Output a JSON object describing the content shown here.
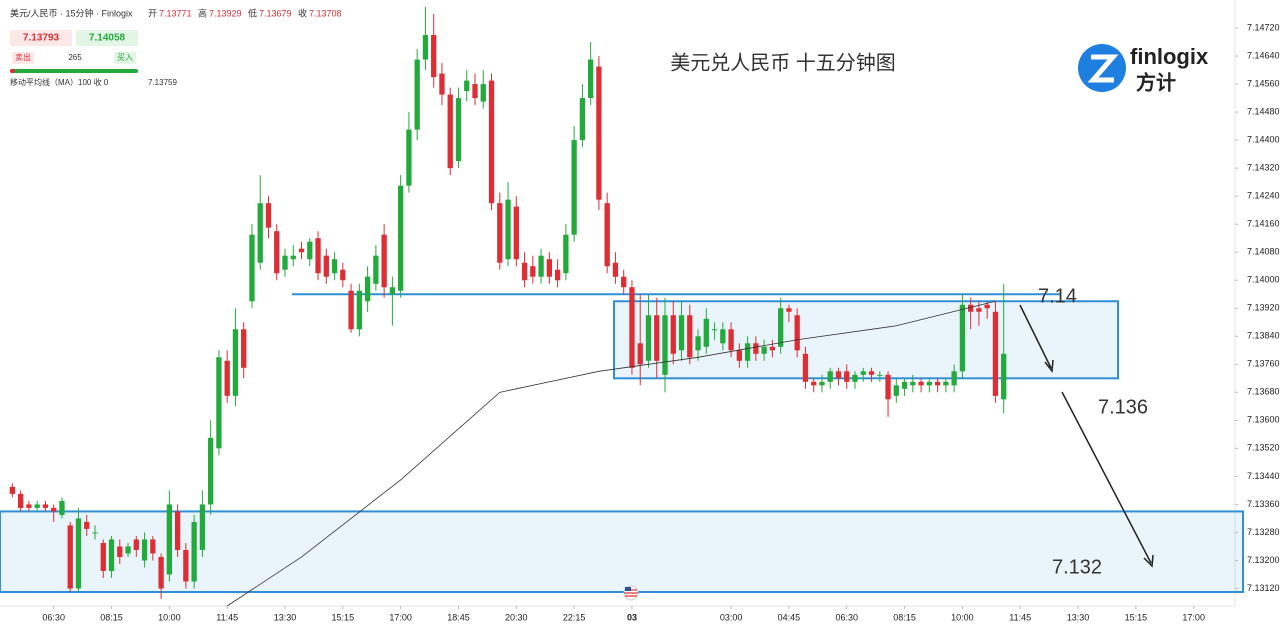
{
  "header": {
    "symbol": "美元/人民币 · 15分钟 · Finlogix",
    "ohlc": [
      [
        "开",
        "7.13771"
      ],
      [
        "高",
        "7.13929"
      ],
      [
        "低",
        "7.13679"
      ],
      [
        "收",
        "7.13708"
      ]
    ],
    "sell_price": "7.13793",
    "buy_price": "7.14058",
    "sell": "卖出",
    "spread": "265",
    "buy": "买入",
    "indicator": "移动平均线（MA）100 收 0",
    "indicator_value": "7.13759",
    "logo_text": "finlogix",
    "logo_cn": "方计"
  },
  "chart_data": {
    "type": "candlestick",
    "title": "美元兑人民币 十五分钟图",
    "up_color": "#22ab3c",
    "down_color": "#dd2d35",
    "open": [
      7.1341,
      7.1339,
      7.1336,
      7.1335,
      7.1336,
      7.1335,
      7.1333,
      7.133,
      7.1312,
      7.1331,
      7.1328,
      7.1325,
      7.1317,
      7.1324,
      7.1322,
      7.1326,
      7.132,
      7.1326,
      7.1321,
      7.1316,
      7.1334,
      7.1323,
      7.1314,
      7.1323,
      7.1336,
      7.1352,
      7.1377,
      7.1367,
      7.1386,
      7.1394,
      7.1405,
      7.1422,
      7.1414,
      7.1403,
      7.1406,
      7.1409,
      7.1406,
      7.1412,
      7.1407,
      7.1402,
      7.1403,
      7.1397,
      7.1386,
      7.1394,
      7.1399,
      7.1413,
      7.1396,
      7.1397,
      7.1427,
      7.1443,
      7.1463,
      7.147,
      7.1459,
      7.1453,
      7.1434,
      7.1454,
      7.1456,
      7.1451,
      7.1457,
      7.1422,
      7.1406,
      7.1421,
      7.1405,
      7.1404,
      7.1401,
      7.1406,
      7.1403,
      7.1402,
      7.1413,
      7.144,
      7.1452,
      7.1461,
      7.1422,
      7.1405,
      7.1401,
      7.1398,
      7.1382,
      7.1377,
      7.139,
      7.1373,
      7.139,
      7.138,
      7.139,
      7.138,
      7.1381,
      7.1386,
      7.1382,
      7.1386,
      7.138,
      7.1377,
      7.1382,
      7.1379,
      7.1381,
      7.1381,
      7.1392,
      7.139,
      7.1379,
      7.1371,
      7.137,
      7.1371,
      7.1374,
      7.1374,
      7.1371,
      7.1373,
      7.1374,
      7.1373,
      7.1373,
      7.1367,
      7.1369,
      7.137,
      7.1371,
      7.137,
      7.1371,
      7.137,
      7.137,
      7.1374,
      7.1393,
      7.1392,
      7.1393,
      7.1391,
      7.1366
    ],
    "high": [
      7.1342,
      7.134,
      7.1337,
      7.1337,
      7.1337,
      7.1336,
      7.1338,
      7.1331,
      7.1335,
      7.1333,
      7.133,
      7.1326,
      7.1327,
      7.1326,
      7.1325,
      7.1327,
      7.1328,
      7.1327,
      7.1322,
      7.134,
      7.1336,
      7.1325,
      7.1333,
      7.134,
      7.136,
      7.138,
      7.138,
      7.1392,
      7.1388,
      7.1416,
      7.143,
      7.1424,
      7.1416,
      7.1409,
      7.141,
      7.1411,
      7.1412,
      7.1414,
      7.1409,
      7.1408,
      7.1405,
      7.1399,
      7.1399,
      7.1404,
      7.141,
      7.1416,
      7.1401,
      7.143,
      7.1448,
      7.1466,
      7.1478,
      7.1476,
      7.1462,
      7.1455,
      7.1455,
      7.146,
      7.1459,
      7.146,
      7.1459,
      7.1425,
      7.1428,
      7.1424,
      7.1408,
      7.1407,
      7.1409,
      7.1408,
      7.1406,
      7.1416,
      7.1444,
      7.1456,
      7.1468,
      7.1464,
      7.1425,
      7.1408,
      7.1403,
      7.14,
      7.1396,
      7.1396,
      7.1395,
      7.1395,
      7.1394,
      7.1394,
      7.1393,
      7.1386,
      7.1392,
      7.1388,
      7.1388,
      7.1388,
      7.1382,
      7.1384,
      7.1384,
      7.1383,
      7.1383,
      7.1395,
      7.1393,
      7.1392,
      7.1381,
      7.1372,
      7.1373,
      7.1375,
      7.1375,
      7.1376,
      7.1374,
      7.1375,
      7.1375,
      7.1374,
      7.1374,
      7.1372,
      7.1372,
      7.1373,
      7.1372,
      7.1372,
      7.1372,
      7.1372,
      7.1376,
      7.1396,
      7.1395,
      7.1394,
      7.1394,
      7.1394,
      7.1399
    ],
    "low": [
      7.1338,
      7.1334,
      7.1334,
      7.1334,
      7.1334,
      7.1331,
      7.1332,
      7.1311,
      7.1311,
      7.1327,
      7.1326,
      7.1315,
      7.1315,
      7.1319,
      7.1321,
      7.1321,
      7.1318,
      7.132,
      7.1309,
      7.1314,
      7.1321,
      7.1312,
      7.1312,
      7.1321,
      7.1333,
      7.135,
      7.1365,
      7.1364,
      7.1372,
      7.1392,
      7.1403,
      7.1412,
      7.14,
      7.1401,
      7.1404,
      7.1406,
      7.1404,
      7.14,
      7.1399,
      7.14,
      7.1398,
      7.1385,
      7.1384,
      7.1391,
      7.1397,
      7.1395,
      7.1387,
      7.1395,
      7.1425,
      7.144,
      7.146,
      7.1455,
      7.145,
      7.143,
      7.1432,
      7.1451,
      7.145,
      7.1449,
      7.142,
      7.1403,
      7.1404,
      7.1404,
      7.1398,
      7.1399,
      7.1399,
      7.1399,
      7.1398,
      7.14,
      7.1411,
      7.1438,
      7.145,
      7.142,
      7.1402,
      7.1399,
      7.1396,
      7.1373,
      7.137,
      7.1375,
      7.1372,
      7.1368,
      7.1376,
      7.1377,
      7.1376,
      7.1377,
      7.1379,
      7.1383,
      7.138,
      7.1378,
      7.1375,
      7.1375,
      7.1377,
      7.1377,
      7.1378,
      7.1379,
      7.1388,
      7.1378,
      7.1369,
      7.1368,
      7.1368,
      7.1369,
      7.137,
      7.1369,
      7.1369,
      7.1371,
      7.1371,
      7.1371,
      7.1361,
      7.1365,
      7.1367,
      7.1368,
      7.1368,
      7.1368,
      7.1368,
      7.1368,
      7.1368,
      7.1372,
      7.1386,
      7.1387,
      7.1389,
      7.1365,
      7.1362
    ],
    "close": [
      7.1339,
      7.1335,
      7.1335,
      7.1336,
      7.1335,
      7.1334,
      7.1337,
      7.1312,
      7.1332,
      7.1329,
      7.1328,
      7.1317,
      7.1326,
      7.1321,
      7.1324,
      7.1323,
      7.1326,
      7.1322,
      7.1312,
      7.1336,
      7.1323,
      7.1314,
      7.1331,
      7.1336,
      7.1355,
      7.1378,
      7.1367,
      7.1386,
      7.1375,
      7.1413,
      7.1422,
      7.1415,
      7.1402,
      7.1407,
      7.1407,
      7.1408,
      7.1411,
      7.1402,
      7.1401,
      7.1406,
      7.14,
      7.1386,
      7.1397,
      7.1401,
      7.1407,
      7.1398,
      7.1398,
      7.1427,
      7.1443,
      7.1463,
      7.147,
      7.1458,
      7.1453,
      7.1432,
      7.1452,
      7.1457,
      7.1452,
      7.1456,
      7.1422,
      7.1405,
      7.1423,
      7.1406,
      7.14,
      7.1401,
      7.1407,
      7.1401,
      7.14,
      7.1413,
      7.144,
      7.1452,
      7.1463,
      7.1423,
      7.1404,
      7.1401,
      7.1398,
      7.1375,
      7.1376,
      7.139,
      7.1377,
      7.139,
      7.1379,
      7.139,
      7.1378,
      7.1384,
      7.1389,
      7.1386,
      7.1386,
      7.138,
      7.1377,
      7.1382,
      7.1379,
      7.1381,
      7.138,
      7.1392,
      7.1391,
      7.138,
      7.1371,
      7.137,
      7.1371,
      7.1374,
      7.1372,
      7.1371,
      7.1373,
      7.1374,
      7.1373,
      7.1373,
      7.1366,
      7.137,
      7.1371,
      7.1371,
      7.137,
      7.1371,
      7.137,
      7.1371,
      7.1374,
      7.1393,
      7.1391,
      7.1391,
      7.1392,
      7.1367,
      7.1379
    ],
    "ma": {
      "color": "#333333",
      "x": [
        26,
        35,
        47,
        59,
        71,
        83,
        95,
        107,
        119
      ],
      "values": [
        7.1307,
        7.1321,
        7.1343,
        7.1368,
        7.1374,
        7.1378,
        7.1383,
        7.1387,
        7.1394
      ]
    },
    "xlim": [
      -1.5,
      148
    ],
    "xticks": [
      {
        "value": 5,
        "label": "06:30"
      },
      {
        "value": 12,
        "label": "08:15"
      },
      {
        "value": 19,
        "label": "10:00"
      },
      {
        "value": 26,
        "label": "11:45"
      },
      {
        "value": 33,
        "label": "13:30"
      },
      {
        "value": 40,
        "label": "15:15"
      },
      {
        "value": 47,
        "label": "17:00"
      },
      {
        "value": 54,
        "label": "18:45"
      },
      {
        "value": 61,
        "label": "20:30"
      },
      {
        "value": 68,
        "label": "22:15"
      },
      {
        "value": 75,
        "label": "03"
      },
      {
        "value": 87,
        "label": "03:00"
      },
      {
        "value": 94,
        "label": "04:45"
      },
      {
        "value": 101,
        "label": "06:30"
      },
      {
        "value": 108,
        "label": "08:15"
      },
      {
        "value": 115,
        "label": "10:00"
      },
      {
        "value": 122,
        "label": "11:45"
      },
      {
        "value": 129,
        "label": "13:30"
      },
      {
        "value": 136,
        "label": "15:15"
      },
      {
        "value": 143,
        "label": "17:00"
      }
    ],
    "ylim": [
      7.1307,
      7.148
    ],
    "yticks": [
      {
        "value": 7.1472,
        "label": "7.14720"
      },
      {
        "value": 7.1464,
        "label": "7.14640"
      },
      {
        "value": 7.1456,
        "label": "7.14560"
      },
      {
        "value": 7.1448,
        "label": "7.14480"
      },
      {
        "value": 7.144,
        "label": "7.14400"
      },
      {
        "value": 7.1432,
        "label": "7.14320"
      },
      {
        "value": 7.1424,
        "label": "7.14240"
      },
      {
        "value": 7.1416,
        "label": "7.14160"
      },
      {
        "value": 7.1408,
        "label": "7.14080"
      },
      {
        "value": 7.14,
        "label": "7.14000"
      },
      {
        "value": 7.1392,
        "label": "7.13920"
      },
      {
        "value": 7.1384,
        "label": "7.13840"
      },
      {
        "value": 7.1376,
        "label": "7.13760"
      },
      {
        "value": 7.1368,
        "label": "7.13680"
      },
      {
        "value": 7.136,
        "label": "7.13600"
      },
      {
        "value": 7.1352,
        "label": "7.13520"
      },
      {
        "value": 7.1344,
        "label": "7.13440"
      },
      {
        "value": 7.1336,
        "label": "7.13360"
      },
      {
        "value": 7.1328,
        "label": "7.13280"
      },
      {
        "value": 7.132,
        "label": "7.13200"
      },
      {
        "value": 7.1312,
        "label": "7.13120"
      }
    ],
    "hline": 7.1396,
    "zones": [
      {
        "low": 7.1372,
        "high": 7.1394
      },
      {
        "low": 7.1311,
        "high": 7.1334
      }
    ],
    "zone_color": "#2f8fd8",
    "annotations": [
      "7.14",
      "7.136",
      "7.132"
    ]
  }
}
